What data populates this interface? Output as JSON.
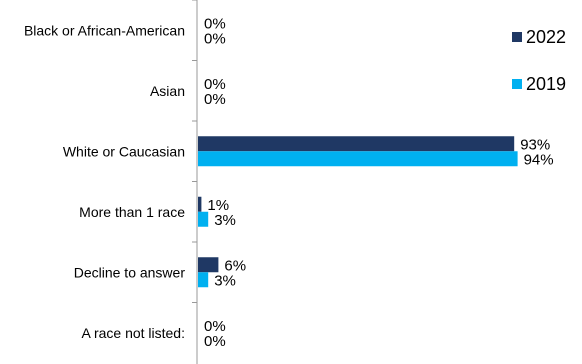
{
  "chart_data": {
    "type": "bar",
    "orientation": "horizontal",
    "categories": [
      "Black or African-American",
      "Asian",
      "White or Caucasian",
      "More than 1 race",
      "Decline to answer",
      "A race not listed:"
    ],
    "series": [
      {
        "name": "2022",
        "color": "#1f3864",
        "values": [
          0,
          0,
          93,
          1,
          6,
          0
        ]
      },
      {
        "name": "2019",
        "color": "#00b0f0",
        "values": [
          0,
          0,
          94,
          3,
          3,
          0
        ]
      }
    ],
    "value_format": "percent",
    "xlim": [
      0,
      100
    ],
    "legend_position": "top-right",
    "grid": false
  }
}
